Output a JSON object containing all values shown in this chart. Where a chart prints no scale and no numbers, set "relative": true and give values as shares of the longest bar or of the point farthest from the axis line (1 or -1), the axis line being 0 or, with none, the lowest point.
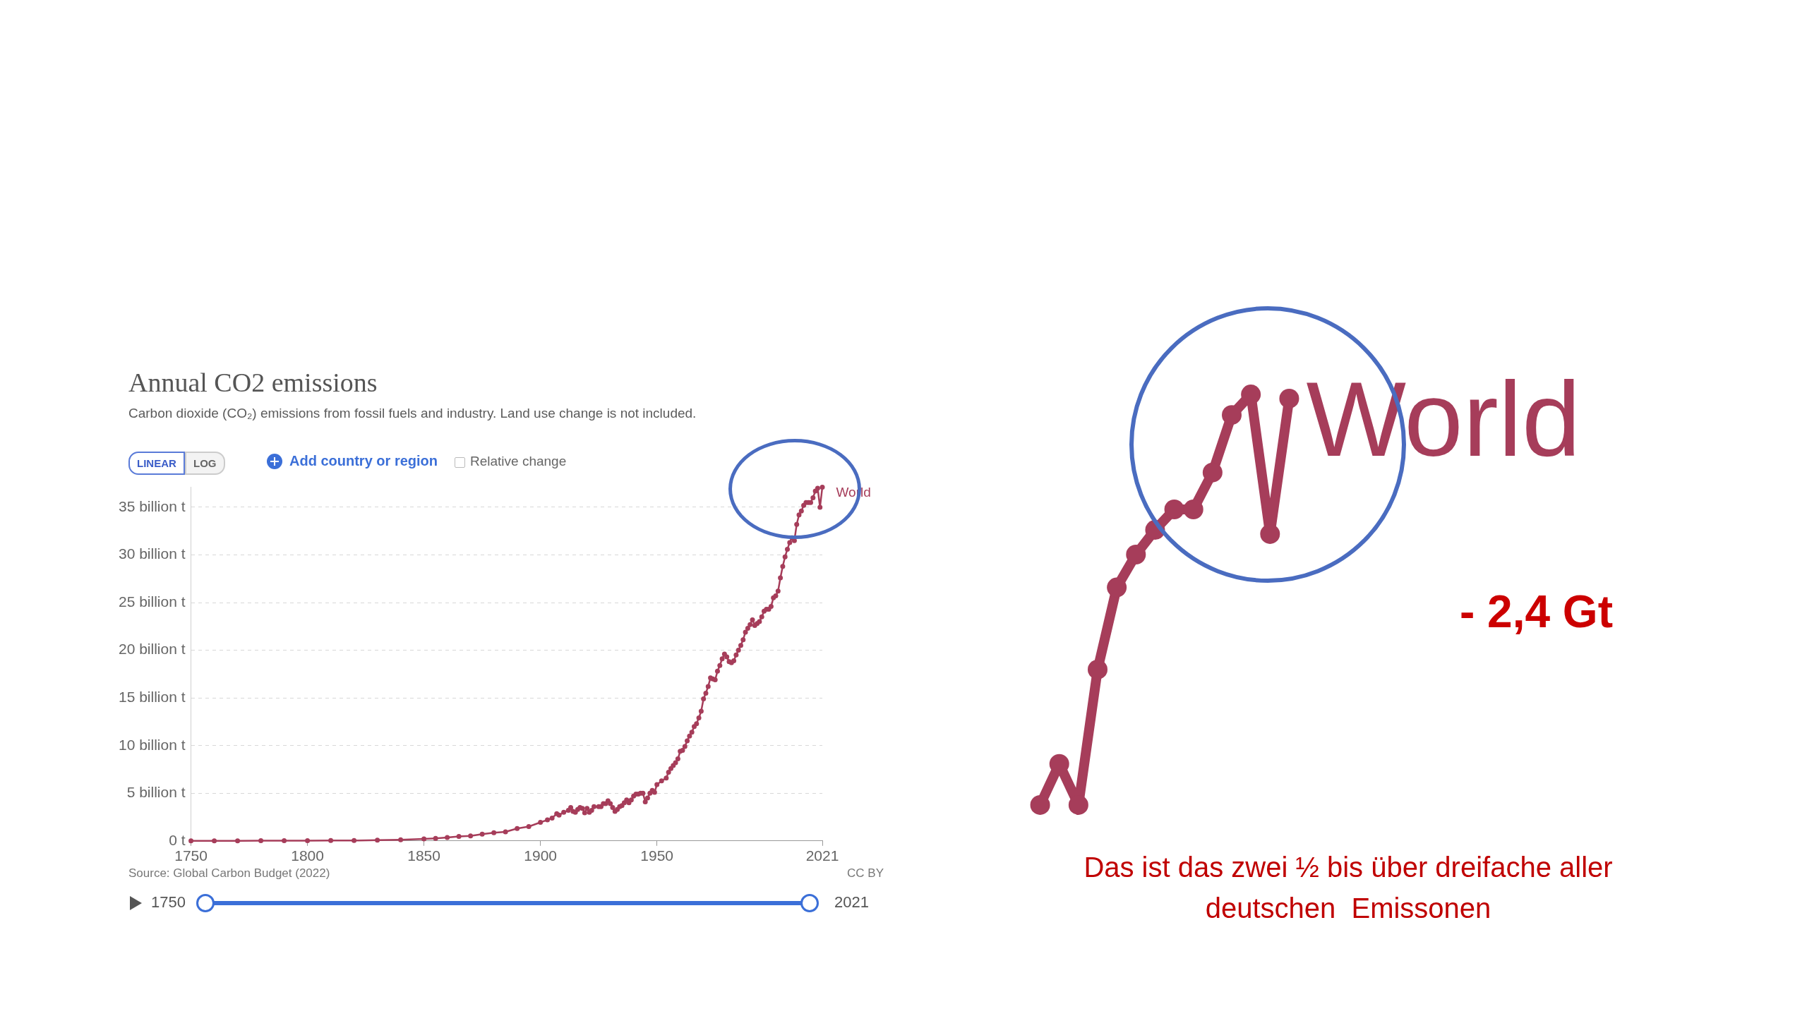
{
  "chart_data": [
    {
      "type": "line",
      "title": "Annual CO2 emissions",
      "subtitle": "Carbon dioxide (CO₂) emissions from fossil fuels and industry. Land use change is not included.",
      "x": [
        1750,
        1760,
        1770,
        1780,
        1790,
        1800,
        1810,
        1820,
        1830,
        1840,
        1850,
        1855,
        1860,
        1865,
        1870,
        1875,
        1880,
        1885,
        1890,
        1895,
        1900,
        1903,
        1905,
        1907,
        1908,
        1910,
        1912,
        1913,
        1914,
        1915,
        1916,
        1917,
        1918,
        1919,
        1920,
        1921,
        1922,
        1923,
        1925,
        1926,
        1927,
        1928,
        1929,
        1930,
        1931,
        1932,
        1933,
        1934,
        1935,
        1936,
        1937,
        1938,
        1939,
        1940,
        1941,
        1942,
        1943,
        1944,
        1945,
        1946,
        1947,
        1948,
        1949,
        1950,
        1952,
        1954,
        1955,
        1956,
        1957,
        1958,
        1959,
        1960,
        1961,
        1962,
        1963,
        1964,
        1965,
        1966,
        1967,
        1968,
        1969,
        1970,
        1971,
        1972,
        1973,
        1974,
        1975,
        1976,
        1977,
        1978,
        1979,
        1980,
        1981,
        1982,
        1983,
        1984,
        1985,
        1986,
        1987,
        1988,
        1989,
        1990,
        1991,
        1992,
        1993,
        1994,
        1995,
        1996,
        1997,
        1998,
        1999,
        2000,
        2001,
        2002,
        2003,
        2004,
        2005,
        2006,
        2007,
        2008,
        2009,
        2010,
        2011,
        2012,
        2013,
        2014,
        2015,
        2016,
        2017,
        2018,
        2019,
        2020,
        2021
      ],
      "series": [
        {
          "name": "World",
          "color": "#a63d5a",
          "values": [
            0.01,
            0.01,
            0.01,
            0.02,
            0.02,
            0.03,
            0.04,
            0.04,
            0.07,
            0.11,
            0.2,
            0.27,
            0.36,
            0.46,
            0.53,
            0.7,
            0.85,
            0.95,
            1.3,
            1.5,
            1.95,
            2.2,
            2.4,
            2.85,
            2.7,
            3.0,
            3.2,
            3.5,
            3.1,
            3.0,
            3.3,
            3.5,
            3.4,
            2.95,
            3.4,
            3.0,
            3.2,
            3.6,
            3.6,
            3.6,
            3.9,
            3.9,
            4.2,
            3.9,
            3.5,
            3.1,
            3.3,
            3.6,
            3.7,
            4.0,
            4.3,
            4.0,
            4.3,
            4.7,
            4.9,
            4.9,
            5.0,
            5.0,
            4.1,
            4.5,
            5.0,
            5.3,
            5.1,
            5.9,
            6.3,
            6.6,
            7.2,
            7.6,
            7.9,
            8.2,
            8.6,
            9.4,
            9.5,
            9.9,
            10.5,
            11.0,
            11.4,
            12.0,
            12.3,
            12.9,
            13.6,
            14.9,
            15.5,
            16.2,
            17.1,
            17.0,
            16.9,
            17.8,
            18.4,
            19.1,
            19.6,
            19.3,
            18.8,
            18.7,
            18.9,
            19.5,
            20.0,
            20.5,
            21.1,
            21.9,
            22.3,
            22.7,
            23.2,
            22.6,
            22.8,
            23.0,
            23.5,
            24.1,
            24.3,
            24.3,
            24.6,
            25.5,
            25.7,
            26.2,
            27.6,
            28.8,
            29.8,
            30.6,
            31.3,
            31.8,
            31.5,
            33.2,
            34.2,
            34.6,
            35.2,
            35.5,
            35.5,
            35.5,
            36.0,
            36.7,
            37.0,
            35.0,
            37.1
          ]
        }
      ],
      "xlim": [
        1750,
        2021
      ],
      "xticks": [
        1750,
        1800,
        1850,
        1900,
        1950,
        2021
      ],
      "ylim": [
        0,
        37.1
      ],
      "yticks": [
        {
          "value": 0,
          "label": "0 t"
        },
        {
          "value": 5,
          "label": "5 billion t"
        },
        {
          "value": 10,
          "label": "10 billion t"
        },
        {
          "value": 15,
          "label": "15 billion t"
        },
        {
          "value": 20,
          "label": "20 billion t"
        },
        {
          "value": 25,
          "label": "25 billion t"
        },
        {
          "value": 30,
          "label": "30 billion t"
        },
        {
          "value": 35,
          "label": "35 billion t"
        }
      ],
      "grid": "y",
      "marker": "circle",
      "annotations": [
        "LINEAR",
        "LOG",
        "Add country or region",
        "Relative change",
        "Source: Global Carbon Budget (2022)",
        "CC BY",
        "1750",
        "2021"
      ]
    },
    {
      "type": "line",
      "categories": [
        null,
        null,
        null,
        null,
        null,
        null,
        null,
        null,
        null,
        null,
        null,
        null,
        null,
        null
      ],
      "series": [
        {
          "name": "World",
          "color": "#a63d5a",
          "values": [
            0,
            0.1,
            0,
            0.33,
            0.53,
            0.61,
            0.67,
            0.72,
            0.72,
            0.81,
            0.95,
            1,
            0.66,
            0.99
          ]
        }
      ],
      "relative": true,
      "marker": "circle",
      "annotations": [
        "- 2,4 Gt",
        "Das ist das zwei ½ bis über dreifache aller deutschen  Emissonen"
      ]
    }
  ]
}
